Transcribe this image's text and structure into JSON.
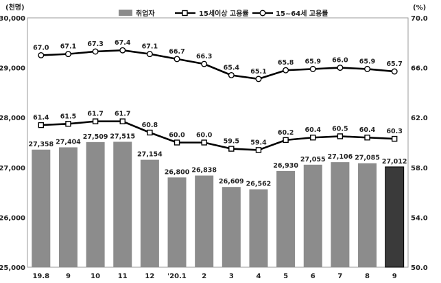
{
  "chart_data": {
    "type": "bar",
    "left_unit": "(천명)",
    "right_unit": "(%)",
    "categories": [
      "19.8",
      "9",
      "10",
      "11",
      "12",
      "'20.1",
      "2",
      "3",
      "4",
      "5",
      "6",
      "7",
      "8",
      "9"
    ],
    "y_left": {
      "min": 25000,
      "max": 30000,
      "ticks": [
        "25,000",
        "26,000",
        "27,000",
        "28,000",
        "29,000",
        "30,000"
      ]
    },
    "y_right": {
      "min": 50.0,
      "max": 70.0,
      "ticks": [
        "50.0",
        "54.0",
        "58.0",
        "62.0",
        "66.0",
        "70.0"
      ]
    },
    "bars": {
      "name": "취업자",
      "values": [
        27358,
        27404,
        27509,
        27515,
        27154,
        26800,
        26838,
        26609,
        26562,
        26930,
        27055,
        27106,
        27085,
        27012
      ],
      "labels": [
        "27,358",
        "27,404",
        "27,509",
        "27,515",
        "27,154",
        "26,800",
        "26,838",
        "26,609",
        "26,562",
        "26,930",
        "27,055",
        "27,106",
        "27,085",
        "27,012"
      ],
      "color": "#8c8c8c",
      "highlight_color": "#3a3a3a",
      "highlight_index": 13
    },
    "series": [
      {
        "name": "15세이상 고용률",
        "marker": "square",
        "values": [
          61.4,
          61.5,
          61.7,
          61.7,
          60.8,
          60.0,
          60.0,
          59.5,
          59.4,
          60.2,
          60.4,
          60.5,
          60.4,
          60.3
        ],
        "labels": [
          "61.4",
          "61.5",
          "61.7",
          "61.7",
          "60.8",
          "60.0",
          "60.0",
          "59.5",
          "59.4",
          "60.2",
          "60.4",
          "60.5",
          "60.4",
          "60.3"
        ]
      },
      {
        "name": "15~64세 고용률",
        "marker": "circle",
        "values": [
          67.0,
          67.1,
          67.3,
          67.4,
          67.1,
          66.7,
          66.3,
          65.4,
          65.1,
          65.8,
          65.9,
          66.0,
          65.9,
          65.7
        ],
        "labels": [
          "67.0",
          "67.1",
          "67.3",
          "67.4",
          "67.1",
          "66.7",
          "66.3",
          "65.4",
          "65.1",
          "65.8",
          "65.9",
          "66.0",
          "65.9",
          "65.7"
        ]
      }
    ],
    "legend": [
      "취업자",
      "15세이상 고용률",
      "15~64세 고용률"
    ],
    "legend_position": "top",
    "grid": false
  }
}
